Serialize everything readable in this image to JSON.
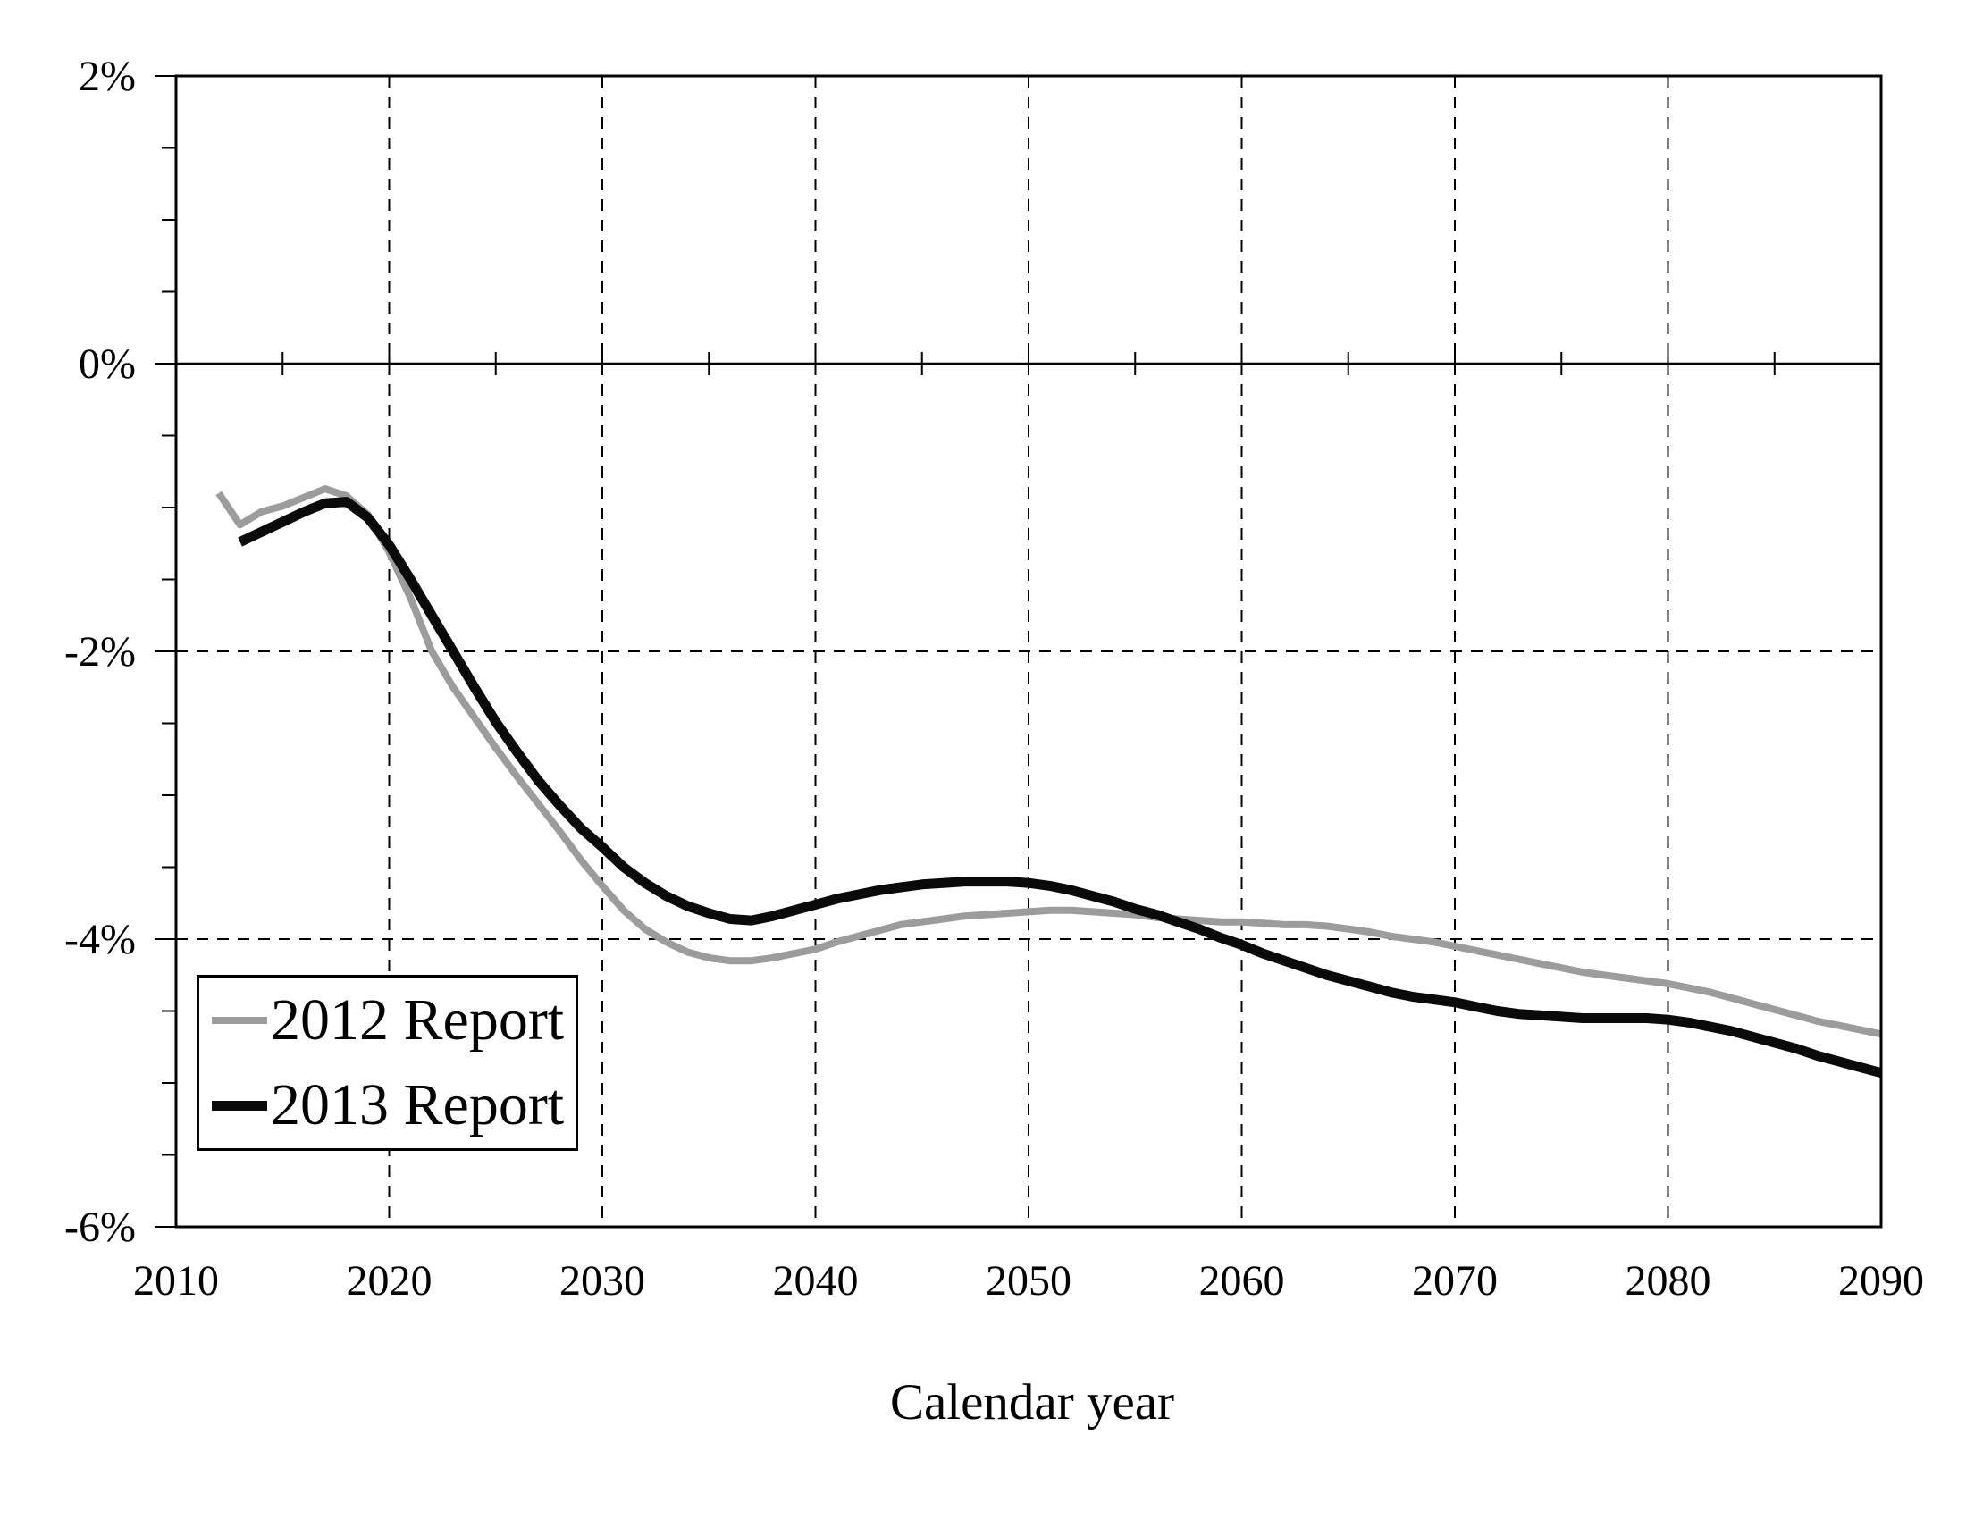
{
  "chart_data": {
    "type": "line",
    "title": "",
    "xlabel": "Calendar year",
    "ylabel": "",
    "grid": "dashed major gridlines on",
    "x_axis": {
      "min": 2010,
      "max": 2090,
      "major_tick_years": [
        2010,
        2020,
        2030,
        2040,
        2050,
        2060,
        2070,
        2080,
        2090
      ],
      "major_tick_labels": [
        "2010",
        "2020",
        "2030",
        "2040",
        "2050",
        "2060",
        "2070",
        "2080",
        "2090"
      ],
      "minor_tick_years": [
        2015,
        2025,
        2035,
        2045,
        2055,
        2065,
        2075,
        2085
      ],
      "gridline_years": [
        2020,
        2030,
        2040,
        2050,
        2060,
        2070,
        2080
      ]
    },
    "y_axis": {
      "min": -6,
      "max": 2,
      "unit": "%",
      "major_ticks": [
        {
          "value": 2,
          "label": "2%"
        },
        {
          "value": 0,
          "label": "0%"
        },
        {
          "value": -2,
          "label": "-2%"
        },
        {
          "value": -4,
          "label": "-4%"
        },
        {
          "value": -6,
          "label": "-6%"
        }
      ],
      "minor_tick_values": [
        1.5,
        1.0,
        0.5,
        -0.5,
        -1.0,
        -1.5,
        -2.5,
        -3.0,
        -3.5,
        -4.5,
        -5.0,
        -5.5
      ],
      "gridline_values": [
        -2,
        -4
      ],
      "zero_line_value": 0
    },
    "legend": {
      "position": "lower-left",
      "items": [
        {
          "label": "2012 Report",
          "color": "#9c9c9c"
        },
        {
          "label": "2013 Report",
          "color": "#0a0a0a"
        }
      ]
    },
    "series": [
      {
        "name": "2012 Report",
        "color": "#9c9c9c",
        "stroke_width": 8,
        "points": [
          [
            2012,
            -0.9
          ],
          [
            2013,
            -1.12
          ],
          [
            2014,
            -1.03
          ],
          [
            2015,
            -0.99
          ],
          [
            2016,
            -0.93
          ],
          [
            2017,
            -0.87
          ],
          [
            2018,
            -0.92
          ],
          [
            2019,
            -1.05
          ],
          [
            2020,
            -1.31
          ],
          [
            2021,
            -1.63
          ],
          [
            2022,
            -2.0
          ],
          [
            2023,
            -2.25
          ],
          [
            2024,
            -2.46
          ],
          [
            2025,
            -2.67
          ],
          [
            2026,
            -2.87
          ],
          [
            2027,
            -3.06
          ],
          [
            2028,
            -3.25
          ],
          [
            2029,
            -3.45
          ],
          [
            2030,
            -3.63
          ],
          [
            2031,
            -3.8
          ],
          [
            2032,
            -3.93
          ],
          [
            2033,
            -4.02
          ],
          [
            2034,
            -4.09
          ],
          [
            2035,
            -4.13
          ],
          [
            2036,
            -4.15
          ],
          [
            2037,
            -4.15
          ],
          [
            2038,
            -4.13
          ],
          [
            2039,
            -4.1
          ],
          [
            2040,
            -4.07
          ],
          [
            2041,
            -4.02
          ],
          [
            2042,
            -3.98
          ],
          [
            2043,
            -3.94
          ],
          [
            2044,
            -3.9
          ],
          [
            2045,
            -3.88
          ],
          [
            2046,
            -3.86
          ],
          [
            2047,
            -3.84
          ],
          [
            2048,
            -3.83
          ],
          [
            2049,
            -3.82
          ],
          [
            2050,
            -3.81
          ],
          [
            2051,
            -3.8
          ],
          [
            2052,
            -3.8
          ],
          [
            2053,
            -3.81
          ],
          [
            2054,
            -3.82
          ],
          [
            2055,
            -3.83
          ],
          [
            2056,
            -3.85
          ],
          [
            2057,
            -3.86
          ],
          [
            2058,
            -3.87
          ],
          [
            2059,
            -3.88
          ],
          [
            2060,
            -3.88
          ],
          [
            2061,
            -3.89
          ],
          [
            2062,
            -3.9
          ],
          [
            2063,
            -3.9
          ],
          [
            2064,
            -3.91
          ],
          [
            2065,
            -3.93
          ],
          [
            2066,
            -3.95
          ],
          [
            2067,
            -3.98
          ],
          [
            2068,
            -4.0
          ],
          [
            2069,
            -4.02
          ],
          [
            2070,
            -4.05
          ],
          [
            2071,
            -4.08
          ],
          [
            2072,
            -4.11
          ],
          [
            2073,
            -4.14
          ],
          [
            2074,
            -4.17
          ],
          [
            2075,
            -4.2
          ],
          [
            2076,
            -4.23
          ],
          [
            2077,
            -4.25
          ],
          [
            2078,
            -4.27
          ],
          [
            2079,
            -4.29
          ],
          [
            2080,
            -4.31
          ],
          [
            2081,
            -4.34
          ],
          [
            2082,
            -4.37
          ],
          [
            2083,
            -4.41
          ],
          [
            2084,
            -4.45
          ],
          [
            2085,
            -4.49
          ],
          [
            2086,
            -4.53
          ],
          [
            2087,
            -4.57
          ],
          [
            2088,
            -4.6
          ],
          [
            2089,
            -4.63
          ],
          [
            2090,
            -4.66
          ]
        ]
      },
      {
        "name": "2013 Report",
        "color": "#0a0a0a",
        "stroke_width": 11,
        "points": [
          [
            2013,
            -1.24
          ],
          [
            2014,
            -1.17
          ],
          [
            2015,
            -1.1
          ],
          [
            2016,
            -1.03
          ],
          [
            2017,
            -0.97
          ],
          [
            2018,
            -0.96
          ],
          [
            2019,
            -1.07
          ],
          [
            2020,
            -1.26
          ],
          [
            2021,
            -1.5
          ],
          [
            2022,
            -1.75
          ],
          [
            2023,
            -2.0
          ],
          [
            2024,
            -2.25
          ],
          [
            2025,
            -2.49
          ],
          [
            2026,
            -2.7
          ],
          [
            2027,
            -2.9
          ],
          [
            2028,
            -3.07
          ],
          [
            2029,
            -3.23
          ],
          [
            2030,
            -3.36
          ],
          [
            2031,
            -3.5
          ],
          [
            2032,
            -3.61
          ],
          [
            2033,
            -3.7
          ],
          [
            2034,
            -3.77
          ],
          [
            2035,
            -3.82
          ],
          [
            2036,
            -3.86
          ],
          [
            2037,
            -3.87
          ],
          [
            2038,
            -3.84
          ],
          [
            2039,
            -3.8
          ],
          [
            2040,
            -3.76
          ],
          [
            2041,
            -3.72
          ],
          [
            2042,
            -3.69
          ],
          [
            2043,
            -3.66
          ],
          [
            2044,
            -3.64
          ],
          [
            2045,
            -3.62
          ],
          [
            2046,
            -3.61
          ],
          [
            2047,
            -3.6
          ],
          [
            2048,
            -3.6
          ],
          [
            2049,
            -3.6
          ],
          [
            2050,
            -3.61
          ],
          [
            2051,
            -3.63
          ],
          [
            2052,
            -3.66
          ],
          [
            2053,
            -3.7
          ],
          [
            2054,
            -3.74
          ],
          [
            2055,
            -3.79
          ],
          [
            2056,
            -3.83
          ],
          [
            2057,
            -3.88
          ],
          [
            2058,
            -3.93
          ],
          [
            2059,
            -3.99
          ],
          [
            2060,
            -4.04
          ],
          [
            2061,
            -4.1
          ],
          [
            2062,
            -4.15
          ],
          [
            2063,
            -4.2
          ],
          [
            2064,
            -4.25
          ],
          [
            2065,
            -4.29
          ],
          [
            2066,
            -4.33
          ],
          [
            2067,
            -4.37
          ],
          [
            2068,
            -4.4
          ],
          [
            2069,
            -4.42
          ],
          [
            2070,
            -4.44
          ],
          [
            2071,
            -4.47
          ],
          [
            2072,
            -4.5
          ],
          [
            2073,
            -4.52
          ],
          [
            2074,
            -4.53
          ],
          [
            2075,
            -4.54
          ],
          [
            2076,
            -4.55
          ],
          [
            2077,
            -4.55
          ],
          [
            2078,
            -4.55
          ],
          [
            2079,
            -4.55
          ],
          [
            2080,
            -4.56
          ],
          [
            2081,
            -4.58
          ],
          [
            2082,
            -4.61
          ],
          [
            2083,
            -4.64
          ],
          [
            2084,
            -4.68
          ],
          [
            2085,
            -4.72
          ],
          [
            2086,
            -4.76
          ],
          [
            2087,
            -4.81
          ],
          [
            2088,
            -4.85
          ],
          [
            2089,
            -4.89
          ],
          [
            2090,
            -4.93
          ]
        ]
      }
    ]
  }
}
